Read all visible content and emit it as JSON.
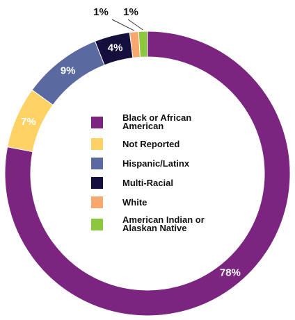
{
  "chart_data": {
    "type": "donut",
    "categories": [
      "Black or African American",
      "Not Reported",
      "Hispanic/Latinx",
      "Multi-Racial",
      "White",
      "American Indian or Alaskan Native"
    ],
    "values": [
      78,
      7,
      9,
      4,
      1,
      1
    ],
    "value_labels": [
      "78%",
      "7%",
      "9%",
      "4%",
      "1%",
      "1%"
    ],
    "colors": [
      "#7b2580",
      "#ffd266",
      "#5a6aa0",
      "#140f3c",
      "#f6a86f",
      "#8dc63f"
    ]
  }
}
